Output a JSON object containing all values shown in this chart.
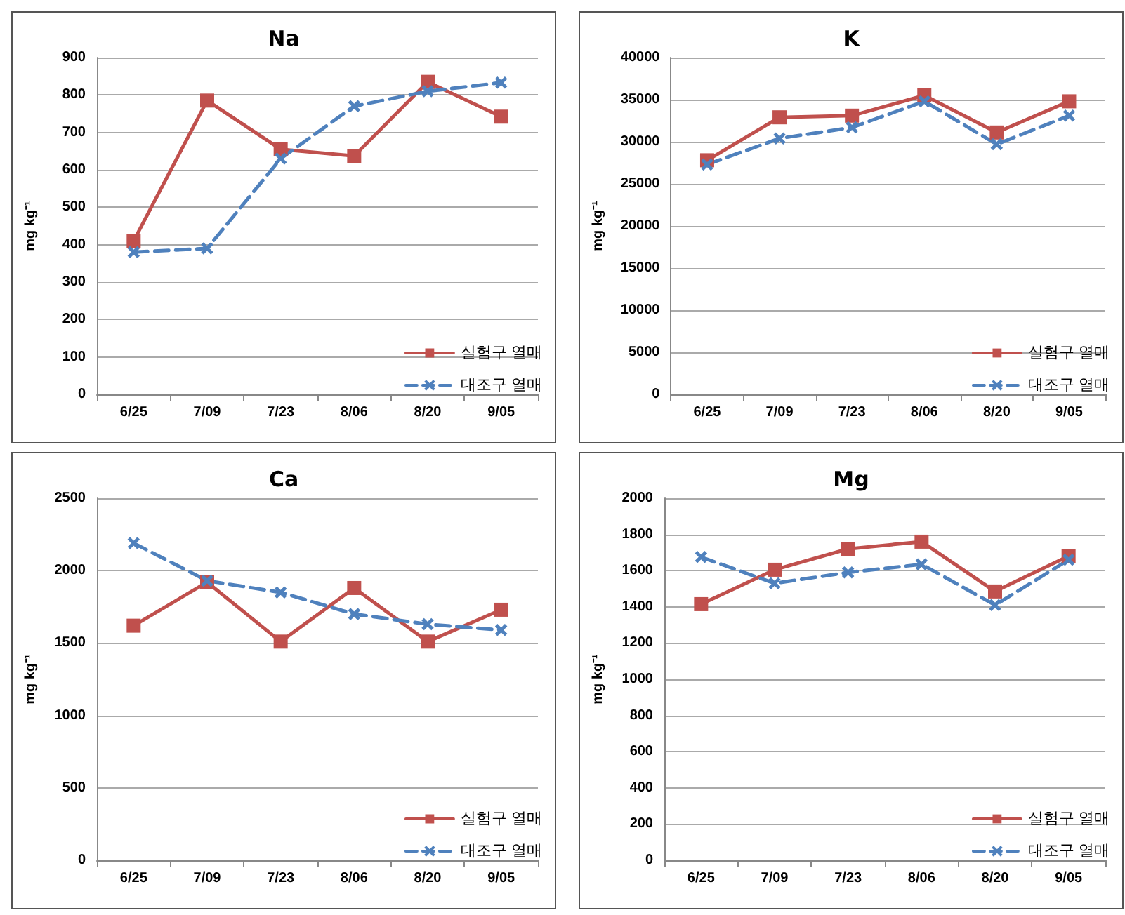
{
  "chart_data": [
    {
      "type": "line",
      "title": "Na",
      "ylabel": "mg kg⁻¹",
      "categories": [
        "6/25",
        "7/09",
        "7/23",
        "8/06",
        "8/20",
        "9/05"
      ],
      "series": [
        {
          "name": "실험구 열매",
          "color": "#c0504d",
          "marker": "square",
          "line_style": "solid",
          "values": [
            410,
            785,
            655,
            637,
            835,
            742
          ]
        },
        {
          "name": "대조구 열매",
          "color": "#4f81bd",
          "marker": "cross",
          "line_style": "dashed",
          "values": [
            380,
            390,
            630,
            770,
            810,
            833
          ]
        }
      ],
      "ylim": [
        0,
        900
      ],
      "yticks": [
        0,
        100,
        200,
        300,
        400,
        500,
        600,
        700,
        800,
        900
      ],
      "grid": "y",
      "legend": "bottom right"
    },
    {
      "type": "line",
      "title": "K",
      "ylabel": "mg kg⁻¹",
      "categories": [
        "6/25",
        "7/09",
        "7/23",
        "8/06",
        "8/20",
        "9/05"
      ],
      "series": [
        {
          "name": "실험구 열매",
          "color": "#c0504d",
          "marker": "square",
          "line_style": "solid",
          "values": [
            27800,
            32900,
            33100,
            35500,
            31100,
            34800
          ]
        },
        {
          "name": "대조구 열매",
          "color": "#4f81bd",
          "marker": "cross",
          "line_style": "dashed",
          "values": [
            27300,
            30400,
            31700,
            34800,
            29700,
            33100
          ]
        }
      ],
      "ylim": [
        0,
        40000
      ],
      "yticks": [
        0,
        5000,
        10000,
        15000,
        20000,
        25000,
        30000,
        35000,
        40000
      ],
      "grid": "y",
      "legend": "bottom right"
    },
    {
      "type": "line",
      "title": "Ca",
      "ylabel": "mg kg⁻¹",
      "categories": [
        "6/25",
        "7/09",
        "7/23",
        "8/06",
        "8/20",
        "9/05"
      ],
      "series": [
        {
          "name": "실험구 열매",
          "color": "#c0504d",
          "marker": "square",
          "line_style": "solid",
          "values": [
            1620,
            1920,
            1510,
            1880,
            1510,
            1730
          ]
        },
        {
          "name": "대조구 열매",
          "color": "#4f81bd",
          "marker": "cross",
          "line_style": "dashed",
          "values": [
            2190,
            1930,
            1850,
            1700,
            1630,
            1590
          ]
        }
      ],
      "ylim": [
        0,
        2500
      ],
      "yticks": [
        0,
        500,
        1000,
        1500,
        2000,
        2500
      ],
      "grid": "y",
      "legend": "bottom right"
    },
    {
      "type": "line",
      "title": "Mg",
      "ylabel": "mg kg⁻¹",
      "categories": [
        "6/25",
        "7/09",
        "7/23",
        "8/06",
        "8/20",
        "9/05"
      ],
      "series": [
        {
          "name": "실험구 열매",
          "color": "#c0504d",
          "marker": "square",
          "line_style": "solid",
          "values": [
            1415,
            1605,
            1720,
            1760,
            1485,
            1680
          ]
        },
        {
          "name": "대조구 열매",
          "color": "#4f81bd",
          "marker": "cross",
          "line_style": "dashed",
          "values": [
            1675,
            1530,
            1590,
            1635,
            1410,
            1660
          ]
        }
      ],
      "ylim": [
        0,
        2000
      ],
      "yticks": [
        0,
        200,
        400,
        600,
        800,
        1000,
        1200,
        1400,
        1600,
        1800,
        2000
      ],
      "grid": "y",
      "legend": "bottom right"
    }
  ]
}
